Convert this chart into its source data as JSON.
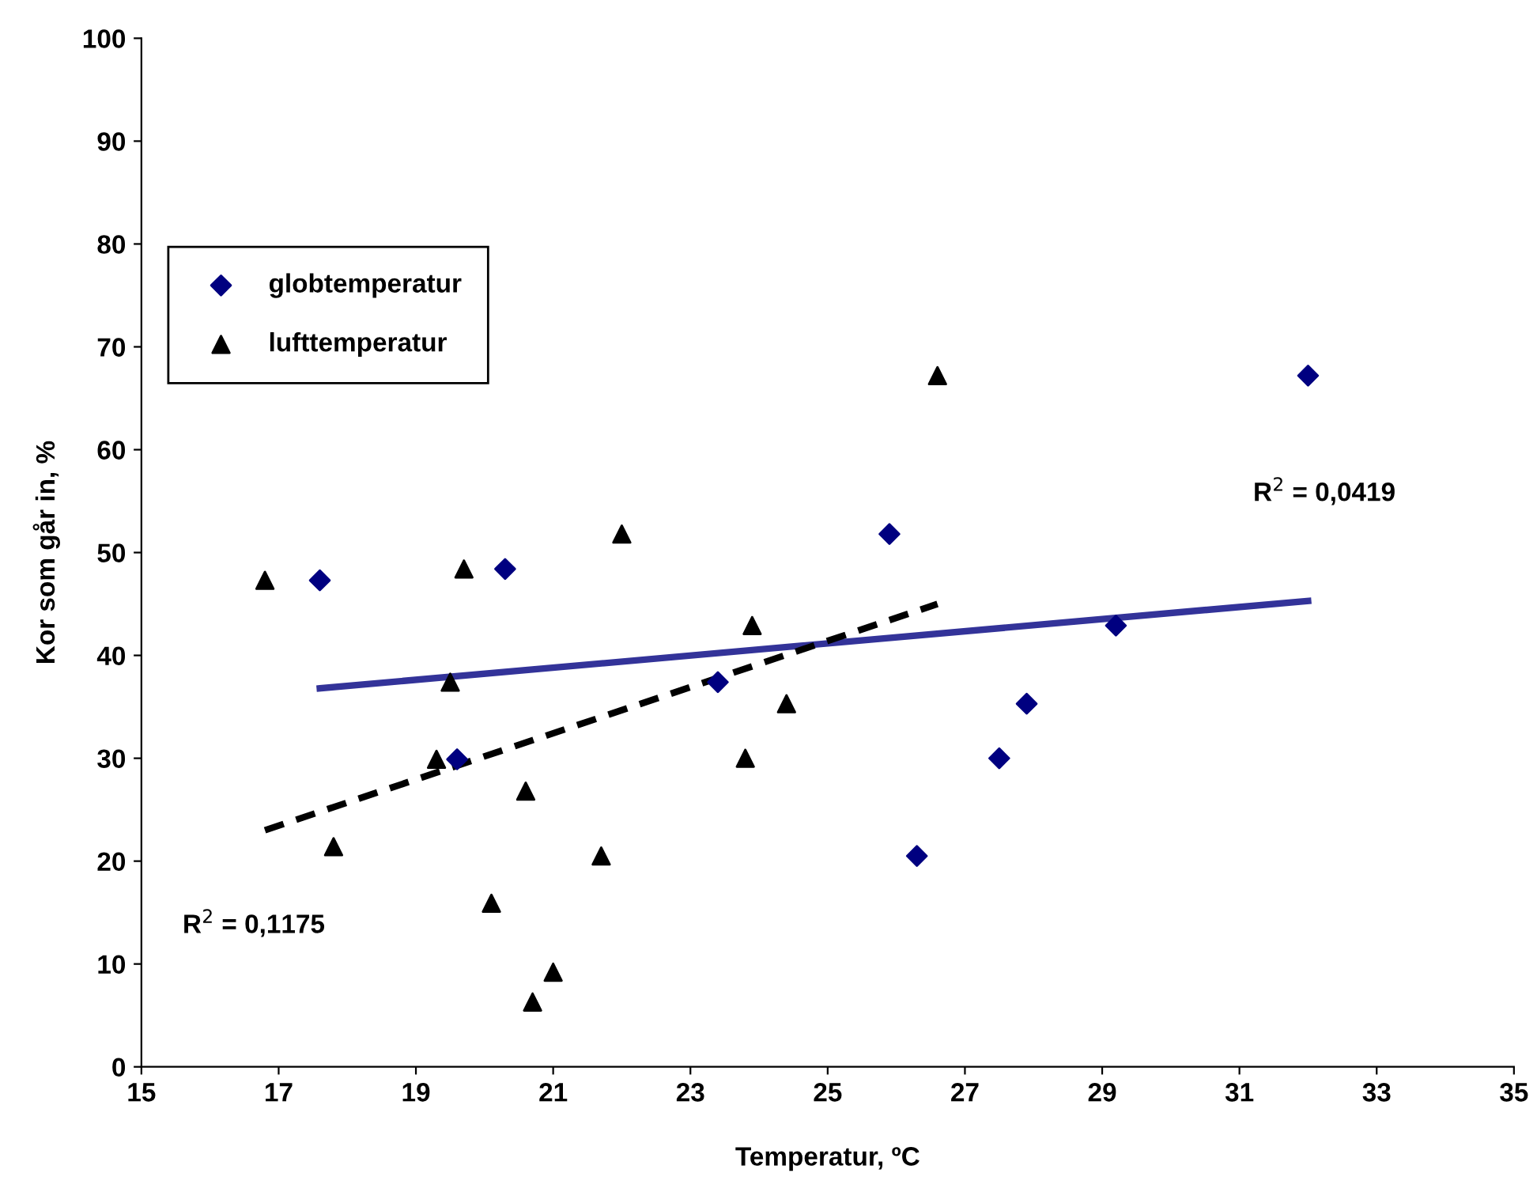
{
  "chart_data": {
    "type": "scatter",
    "xlabel": "Temperatur, ºC",
    "ylabel": "Kor som går in, %",
    "xlim": [
      15,
      35
    ],
    "xticks": [
      15,
      17,
      19,
      21,
      23,
      25,
      27,
      29,
      31,
      33,
      35
    ],
    "ylim": [
      0,
      100
    ],
    "yticks": [
      0,
      10,
      20,
      30,
      40,
      50,
      60,
      70,
      80,
      90,
      100
    ],
    "grid": false,
    "legend": "top left",
    "series": [
      {
        "name": "globtemperatur",
        "color": "#000080",
        "marker": "diamond",
        "x": [
          17.6,
          20.3,
          19.6,
          23.4,
          25.9,
          26.3,
          27.5,
          27.9,
          29.2,
          32.0
        ],
        "values": [
          47.3,
          48.4,
          29.9,
          37.4,
          51.8,
          20.5,
          30.0,
          35.3,
          42.9,
          67.2
        ]
      },
      {
        "name": "lufttemperatur",
        "color": "#000000",
        "marker": "triangle",
        "x": [
          16.8,
          17.8,
          19.7,
          19.5,
          19.3,
          20.6,
          20.1,
          20.7,
          21.0,
          21.7,
          22.0,
          23.9,
          23.8,
          24.4,
          26.6
        ],
        "values": [
          47.3,
          21.4,
          48.4,
          37.4,
          29.9,
          26.8,
          15.9,
          6.3,
          9.2,
          20.5,
          51.8,
          42.9,
          30.0,
          35.3,
          67.2
        ]
      },
      {
        "type": "line",
        "color": "#333399",
        "line_style": "solid",
        "x": [
          17.6,
          32.0
        ],
        "values": [
          36.8,
          45.3
        ]
      },
      {
        "type": "line",
        "color": "#000000",
        "line_style": "dashed",
        "x": [
          16.8,
          26.6
        ],
        "values": [
          23.0,
          45.0
        ]
      }
    ],
    "annotations": [
      "R$^{2}$ = 0,0419",
      "R$^{2}$ = 0,1175"
    ]
  }
}
